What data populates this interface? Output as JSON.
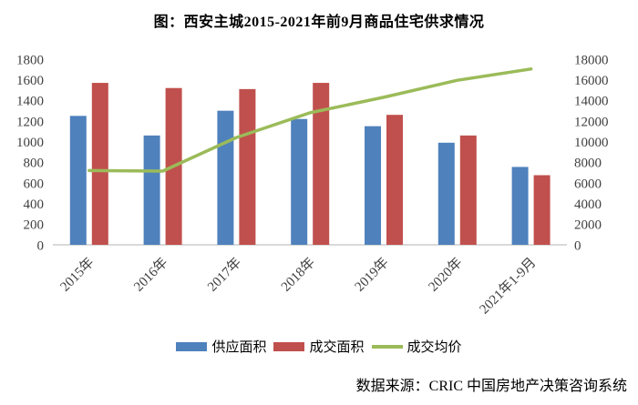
{
  "title": "图：西安主城2015-2021年前9月商品住宅供求情况",
  "source_note": "数据来源：CRIC 中国房地产决策咨询系统",
  "colors": {
    "supply_bar": "#4F81BD",
    "transaction_bar": "#C0504D",
    "price_line": "#9BBB59",
    "axis_text": "#404040",
    "baseline": "#D9D9D9",
    "title_text": "#000000"
  },
  "legend": {
    "items": [
      {
        "label": "供应面积",
        "swatch": "bar",
        "color": "#4F81BD"
      },
      {
        "label": "成交面积",
        "swatch": "bar",
        "color": "#C0504D"
      },
      {
        "label": "成交均价",
        "swatch": "line",
        "color": "#9BBB59"
      }
    ]
  },
  "chart_data": {
    "type": "bar",
    "subtype": "grouped bars with overlaid line, dual y-axes",
    "title": "图：西安主城2015-2021年前9月商品住宅供求情况",
    "categories": [
      "2015年",
      "2016年",
      "2017年",
      "2018年",
      "2019年",
      "2020年",
      "2021年1-9月"
    ],
    "series": [
      {
        "name": "供应面积",
        "type": "bar",
        "axis": "left",
        "color": "#4F81BD",
        "values": [
          1250,
          1060,
          1300,
          1220,
          1150,
          990,
          755
        ]
      },
      {
        "name": "成交面积",
        "type": "bar",
        "axis": "left",
        "color": "#C0504D",
        "values": [
          1570,
          1520,
          1510,
          1570,
          1260,
          1060,
          675
        ]
      },
      {
        "name": "成交均价",
        "type": "line",
        "axis": "right",
        "color": "#9BBB59",
        "values": [
          7200,
          7150,
          10400,
          12800,
          14300,
          15950,
          17050
        ]
      }
    ],
    "left_axis": {
      "min": 0,
      "max": 1800,
      "step": 200,
      "ticks": [
        0,
        200,
        400,
        600,
        800,
        1000,
        1200,
        1400,
        1600,
        1800
      ]
    },
    "right_axis": {
      "min": 0,
      "max": 18000,
      "step": 2000,
      "ticks": [
        0,
        2000,
        4000,
        6000,
        8000,
        10000,
        12000,
        14000,
        16000,
        18000
      ]
    },
    "grid": false,
    "legend_position": "bottom",
    "source": "数据来源：CRIC 中国房地产决策咨询系统"
  }
}
